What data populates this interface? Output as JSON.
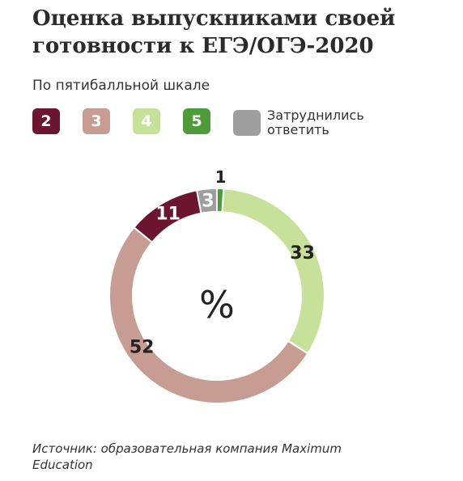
{
  "header": {
    "title": "Оценка выпускниками своей готовности к ЕГЭ/ОГЭ-2020",
    "subtitle": "По пятибалльной шкале"
  },
  "chart_data": {
    "type": "pie",
    "center_label": "%",
    "slices": [
      {
        "label": "5",
        "value": 1,
        "color": "#4e9b3a"
      },
      {
        "label": "4",
        "value": 33,
        "color": "#c7e19a"
      },
      {
        "label": "3",
        "value": 52,
        "color": "#c79c93"
      },
      {
        "label": "2",
        "value": 11,
        "color": "#6b1530"
      },
      {
        "label": "Затруднились ответить",
        "value": 3,
        "color": "#9e9e9e"
      }
    ]
  },
  "legend": [
    {
      "key": "2",
      "color": "#6b1530"
    },
    {
      "key": "3",
      "color": "#c79c93"
    },
    {
      "key": "4",
      "color": "#c7e19a"
    },
    {
      "key": "5",
      "color": "#4e9b3a"
    },
    {
      "key": "",
      "text": "Затруднились ответить",
      "color": "#9e9e9e"
    }
  ],
  "source": {
    "text": "Источник: образовательная компания Maximum Education"
  }
}
